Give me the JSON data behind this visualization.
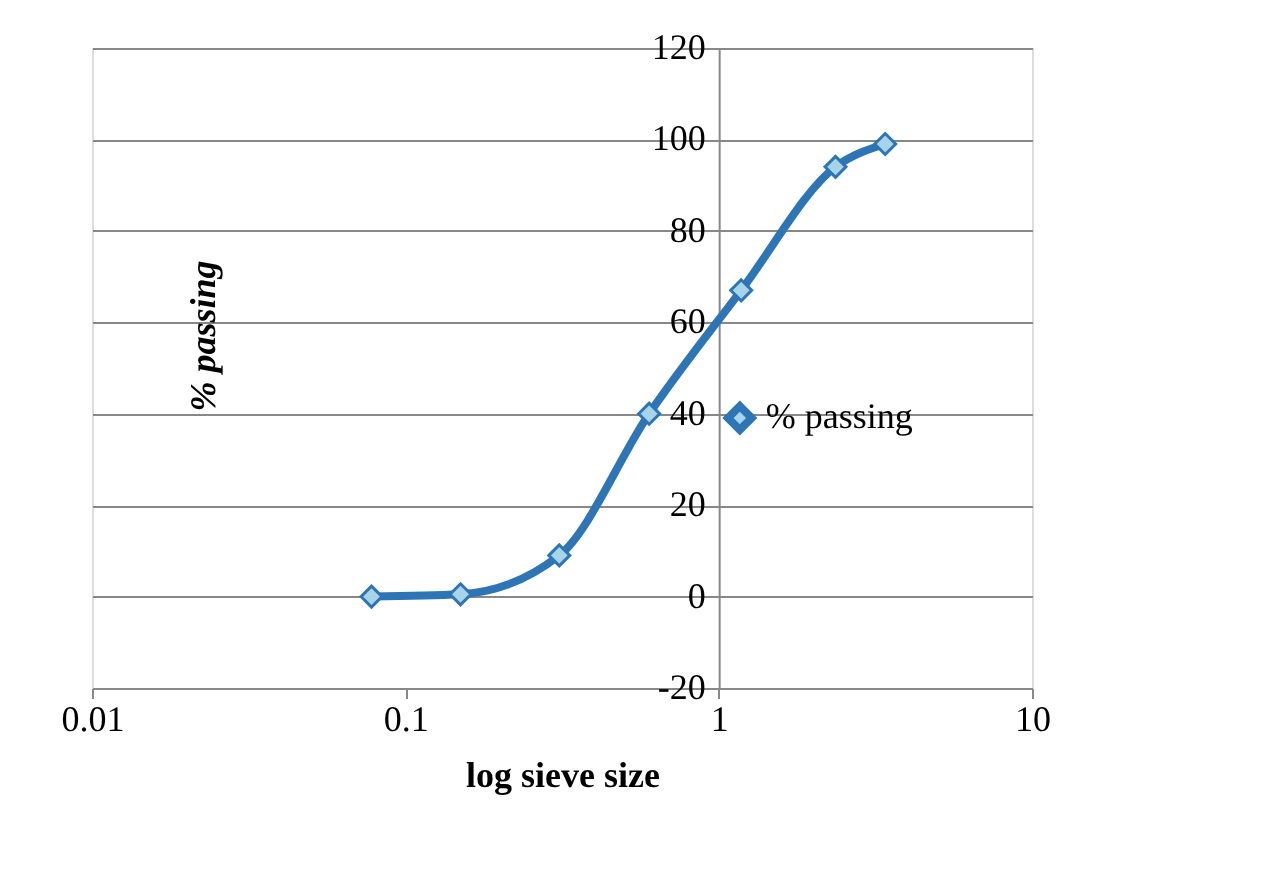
{
  "chart_data": {
    "type": "line",
    "xlabel": "log sieve size",
    "ylabel": "% passing",
    "x": [
      0.078,
      0.15,
      0.31,
      0.6,
      1.18,
      2.36,
      3.4
    ],
    "series": [
      {
        "name": "% passing",
        "color": "#2e75b6",
        "values": [
          0,
          0.5,
          9,
          40,
          67,
          94,
          99
        ]
      }
    ],
    "log": "x",
    "xlim": [
      0.01,
      10
    ],
    "xticks": [
      0.01,
      0.1,
      1,
      10
    ],
    "ylim": [
      -20,
      120
    ],
    "yticks": [
      -20,
      0,
      20,
      40,
      60,
      80,
      100,
      120
    ],
    "grid": "y",
    "marker": "diamond",
    "line_style": "solid",
    "legend": "right"
  }
}
